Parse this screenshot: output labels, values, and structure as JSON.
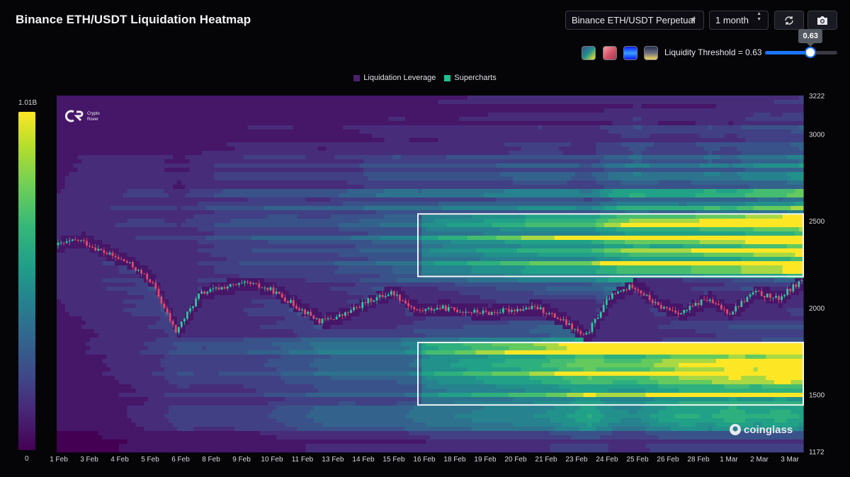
{
  "header": {
    "title": "Binance ETH/USDT Liquidation Heatmap",
    "pair_select": "Binance ETH/USDT Perpetual",
    "range_select": "1 month",
    "refresh_icon": "refresh-icon",
    "camera_icon": "camera-icon"
  },
  "controls": {
    "palettes": [
      {
        "name": "viridis",
        "colors": [
          "#3b528b",
          "#21918c",
          "#fde725"
        ]
      },
      {
        "name": "rose",
        "colors": [
          "#f3a0a8",
          "#d7566b",
          "#a33a5a"
        ]
      },
      {
        "name": "blue",
        "colors": [
          "#0a1aff",
          "#38a0ff",
          "#0a1aff"
        ]
      },
      {
        "name": "cividis",
        "colors": [
          "#203050",
          "#707080",
          "#f0d860"
        ]
      }
    ],
    "threshold_label": "Liquidity Threshold = 0.63",
    "threshold_value": 0.63,
    "tooltip_value": "0.63"
  },
  "legend": [
    {
      "label": "Liquidation Leverage",
      "color": "#4b1f6e"
    },
    {
      "label": "Supercharts",
      "color": "#1fbf8f"
    }
  ],
  "colorbar": {
    "max_label": "1.01B",
    "min_label": "0"
  },
  "watermarks": {
    "top_left": [
      "Crypto",
      "Rover"
    ],
    "bottom_right": "coinglass"
  },
  "chart_data": {
    "type": "heatmap",
    "title": "Binance ETH/USDT Liquidation Heatmap",
    "x_tick_labels": [
      "1 Feb",
      "3 Feb",
      "4 Feb",
      "5 Feb",
      "6 Feb",
      "8 Feb",
      "9 Feb",
      "10 Feb",
      "11 Feb",
      "13 Feb",
      "14 Feb",
      "15 Feb",
      "16 Feb",
      "18 Feb",
      "19 Feb",
      "20 Feb",
      "21 Feb",
      "23 Feb",
      "24 Feb",
      "25 Feb",
      "26 Feb",
      "28 Feb",
      "1 Mar",
      "2 Mar",
      "3 Mar"
    ],
    "y_tick_labels": [
      "3222",
      "3000",
      "2500",
      "2000",
      "1500",
      "1172"
    ],
    "y_ticks": [
      3222,
      3000,
      2500,
      2000,
      1500,
      1172
    ],
    "ylim": [
      1172,
      3222
    ],
    "colorscale": {
      "min": 0,
      "max": 1010000000.0,
      "max_label": "1.01B"
    },
    "price_series": {
      "name": "ETH/USDT",
      "days": [
        0,
        1,
        2,
        3,
        4,
        5,
        6,
        7,
        8,
        9,
        10,
        11,
        12,
        13,
        14,
        15,
        16,
        17,
        18,
        19,
        20,
        21,
        22,
        23,
        24,
        25,
        26,
        27,
        28,
        29,
        30,
        31
      ],
      "close": [
        2360,
        2390,
        2320,
        2260,
        2150,
        1860,
        2080,
        2120,
        2140,
        2100,
        2010,
        1920,
        1960,
        2040,
        2090,
        1980,
        2000,
        1980,
        1970,
        1990,
        2000,
        1930,
        1830,
        2060,
        2130,
        2010,
        1970,
        2050,
        1970,
        2090,
        2050,
        2160
      ]
    },
    "liquidity_bands": [
      {
        "price_low": 2180,
        "price_high": 2540,
        "from_day": 15,
        "to_day": 31,
        "intensity": "high"
      },
      {
        "price_low": 1440,
        "price_high": 1800,
        "from_day": 15,
        "to_day": 31,
        "intensity": "high"
      }
    ]
  }
}
